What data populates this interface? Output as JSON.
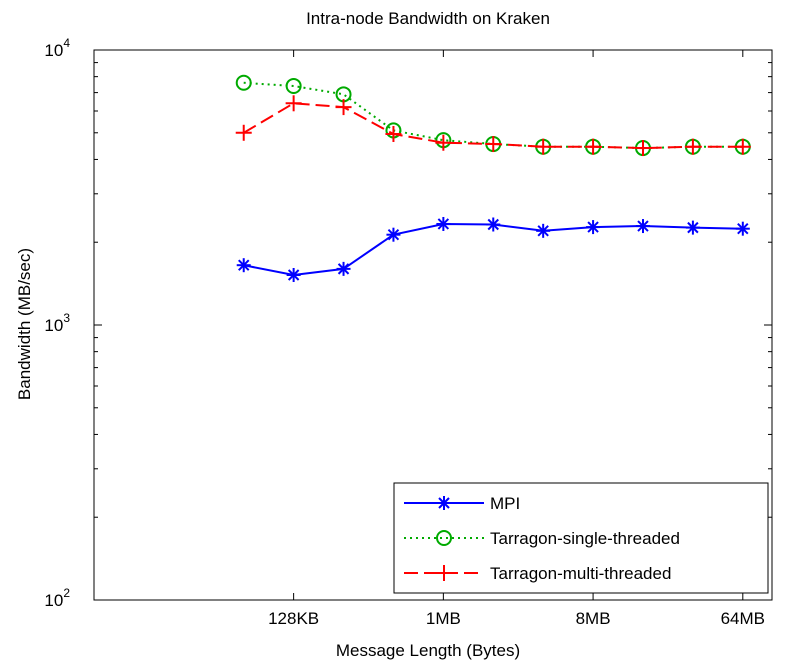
{
  "chart_data": {
    "type": "line",
    "title": "Intra-node Bandwidth on Kraken",
    "xlabel": "Message Length (Bytes)",
    "ylabel": "Bandwidth (MB/sec)",
    "x_scale": "log2",
    "y_scale": "log10",
    "xlim": [
      8192,
      100663296
    ],
    "ylim": [
      100,
      10000
    ],
    "grid": false,
    "legend_position": "bottom-right",
    "x_ticks": [
      {
        "value": 131072,
        "label": "128KB"
      },
      {
        "value": 1048576,
        "label": "1MB"
      },
      {
        "value": 8388608,
        "label": "8MB"
      },
      {
        "value": 67108864,
        "label": "64MB"
      }
    ],
    "y_ticks": [
      {
        "value": 100,
        "base": "10",
        "exp": "2"
      },
      {
        "value": 1000,
        "base": "10",
        "exp": "3"
      },
      {
        "value": 10000,
        "base": "10",
        "exp": "4"
      }
    ],
    "x": [
      65536,
      131072,
      262144,
      524288,
      1048576,
      2097152,
      4194304,
      8388608,
      16777216,
      33554432,
      67108864
    ],
    "series": [
      {
        "name": "MPI",
        "color": "#0000ff",
        "line": "solid",
        "marker": "asterisk",
        "values": [
          1650,
          1520,
          1600,
          2130,
          2330,
          2320,
          2200,
          2270,
          2290,
          2260,
          2240
        ]
      },
      {
        "name": "Tarragon-single-threaded",
        "color": "#00aa00",
        "line": "dotted",
        "marker": "circle",
        "values": [
          7600,
          7400,
          6900,
          5100,
          4700,
          4550,
          4450,
          4450,
          4400,
          4450,
          4450
        ]
      },
      {
        "name": "Tarragon-multi-threaded",
        "color": "#ff0000",
        "line": "dashed",
        "marker": "plus",
        "values": [
          5000,
          6400,
          6200,
          4950,
          4600,
          4550,
          4450,
          4450,
          4400,
          4450,
          4450
        ]
      }
    ]
  }
}
